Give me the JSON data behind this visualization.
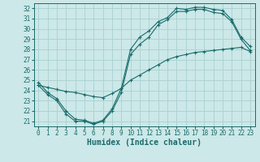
{
  "xlabel": "Humidex (Indice chaleur)",
  "bg_color": "#cce8e8",
  "grid_color": "#aad0d0",
  "line_color": "#1a6b6b",
  "xlim": [
    -0.5,
    23.5
  ],
  "ylim": [
    20.5,
    32.5
  ],
  "xticks": [
    0,
    1,
    2,
    3,
    4,
    5,
    6,
    7,
    8,
    9,
    10,
    11,
    12,
    13,
    14,
    15,
    16,
    17,
    18,
    19,
    20,
    21,
    22,
    23
  ],
  "yticks": [
    21,
    22,
    23,
    24,
    25,
    26,
    27,
    28,
    29,
    30,
    31,
    32
  ],
  "curve1_x": [
    0,
    1,
    2,
    3,
    4,
    5,
    6,
    7,
    8,
    9,
    10,
    11,
    12,
    13,
    14,
    15,
    16,
    17,
    18,
    19,
    20,
    21,
    22,
    23
  ],
  "curve1_y": [
    24.8,
    23.8,
    23.2,
    22.0,
    21.2,
    21.1,
    20.8,
    21.1,
    22.2,
    24.2,
    28.0,
    29.2,
    29.8,
    30.7,
    31.1,
    32.0,
    31.9,
    32.1,
    32.1,
    31.9,
    31.8,
    30.9,
    29.2,
    28.3
  ],
  "curve2_x": [
    0,
    1,
    2,
    3,
    4,
    5,
    6,
    7,
    8,
    9,
    10,
    11,
    12,
    13,
    14,
    15,
    16,
    17,
    18,
    19,
    20,
    21,
    22,
    23
  ],
  "curve2_y": [
    24.5,
    23.6,
    23.0,
    21.7,
    21.0,
    21.0,
    20.7,
    21.0,
    22.0,
    23.8,
    27.5,
    28.5,
    29.2,
    30.4,
    30.9,
    31.7,
    31.7,
    31.9,
    31.9,
    31.6,
    31.5,
    30.7,
    29.0,
    27.9
  ],
  "curve3_x": [
    0,
    1,
    2,
    3,
    4,
    5,
    6,
    7,
    8,
    9,
    10,
    11,
    12,
    13,
    14,
    15,
    16,
    17,
    18,
    19,
    20,
    21,
    22,
    23
  ],
  "curve3_y": [
    24.5,
    24.3,
    24.1,
    23.9,
    23.8,
    23.6,
    23.4,
    23.3,
    23.7,
    24.2,
    25.0,
    25.5,
    26.0,
    26.5,
    27.0,
    27.3,
    27.5,
    27.7,
    27.8,
    27.9,
    28.0,
    28.1,
    28.2,
    27.8
  ],
  "tick_fontsize": 5.5,
  "axis_fontsize": 7
}
